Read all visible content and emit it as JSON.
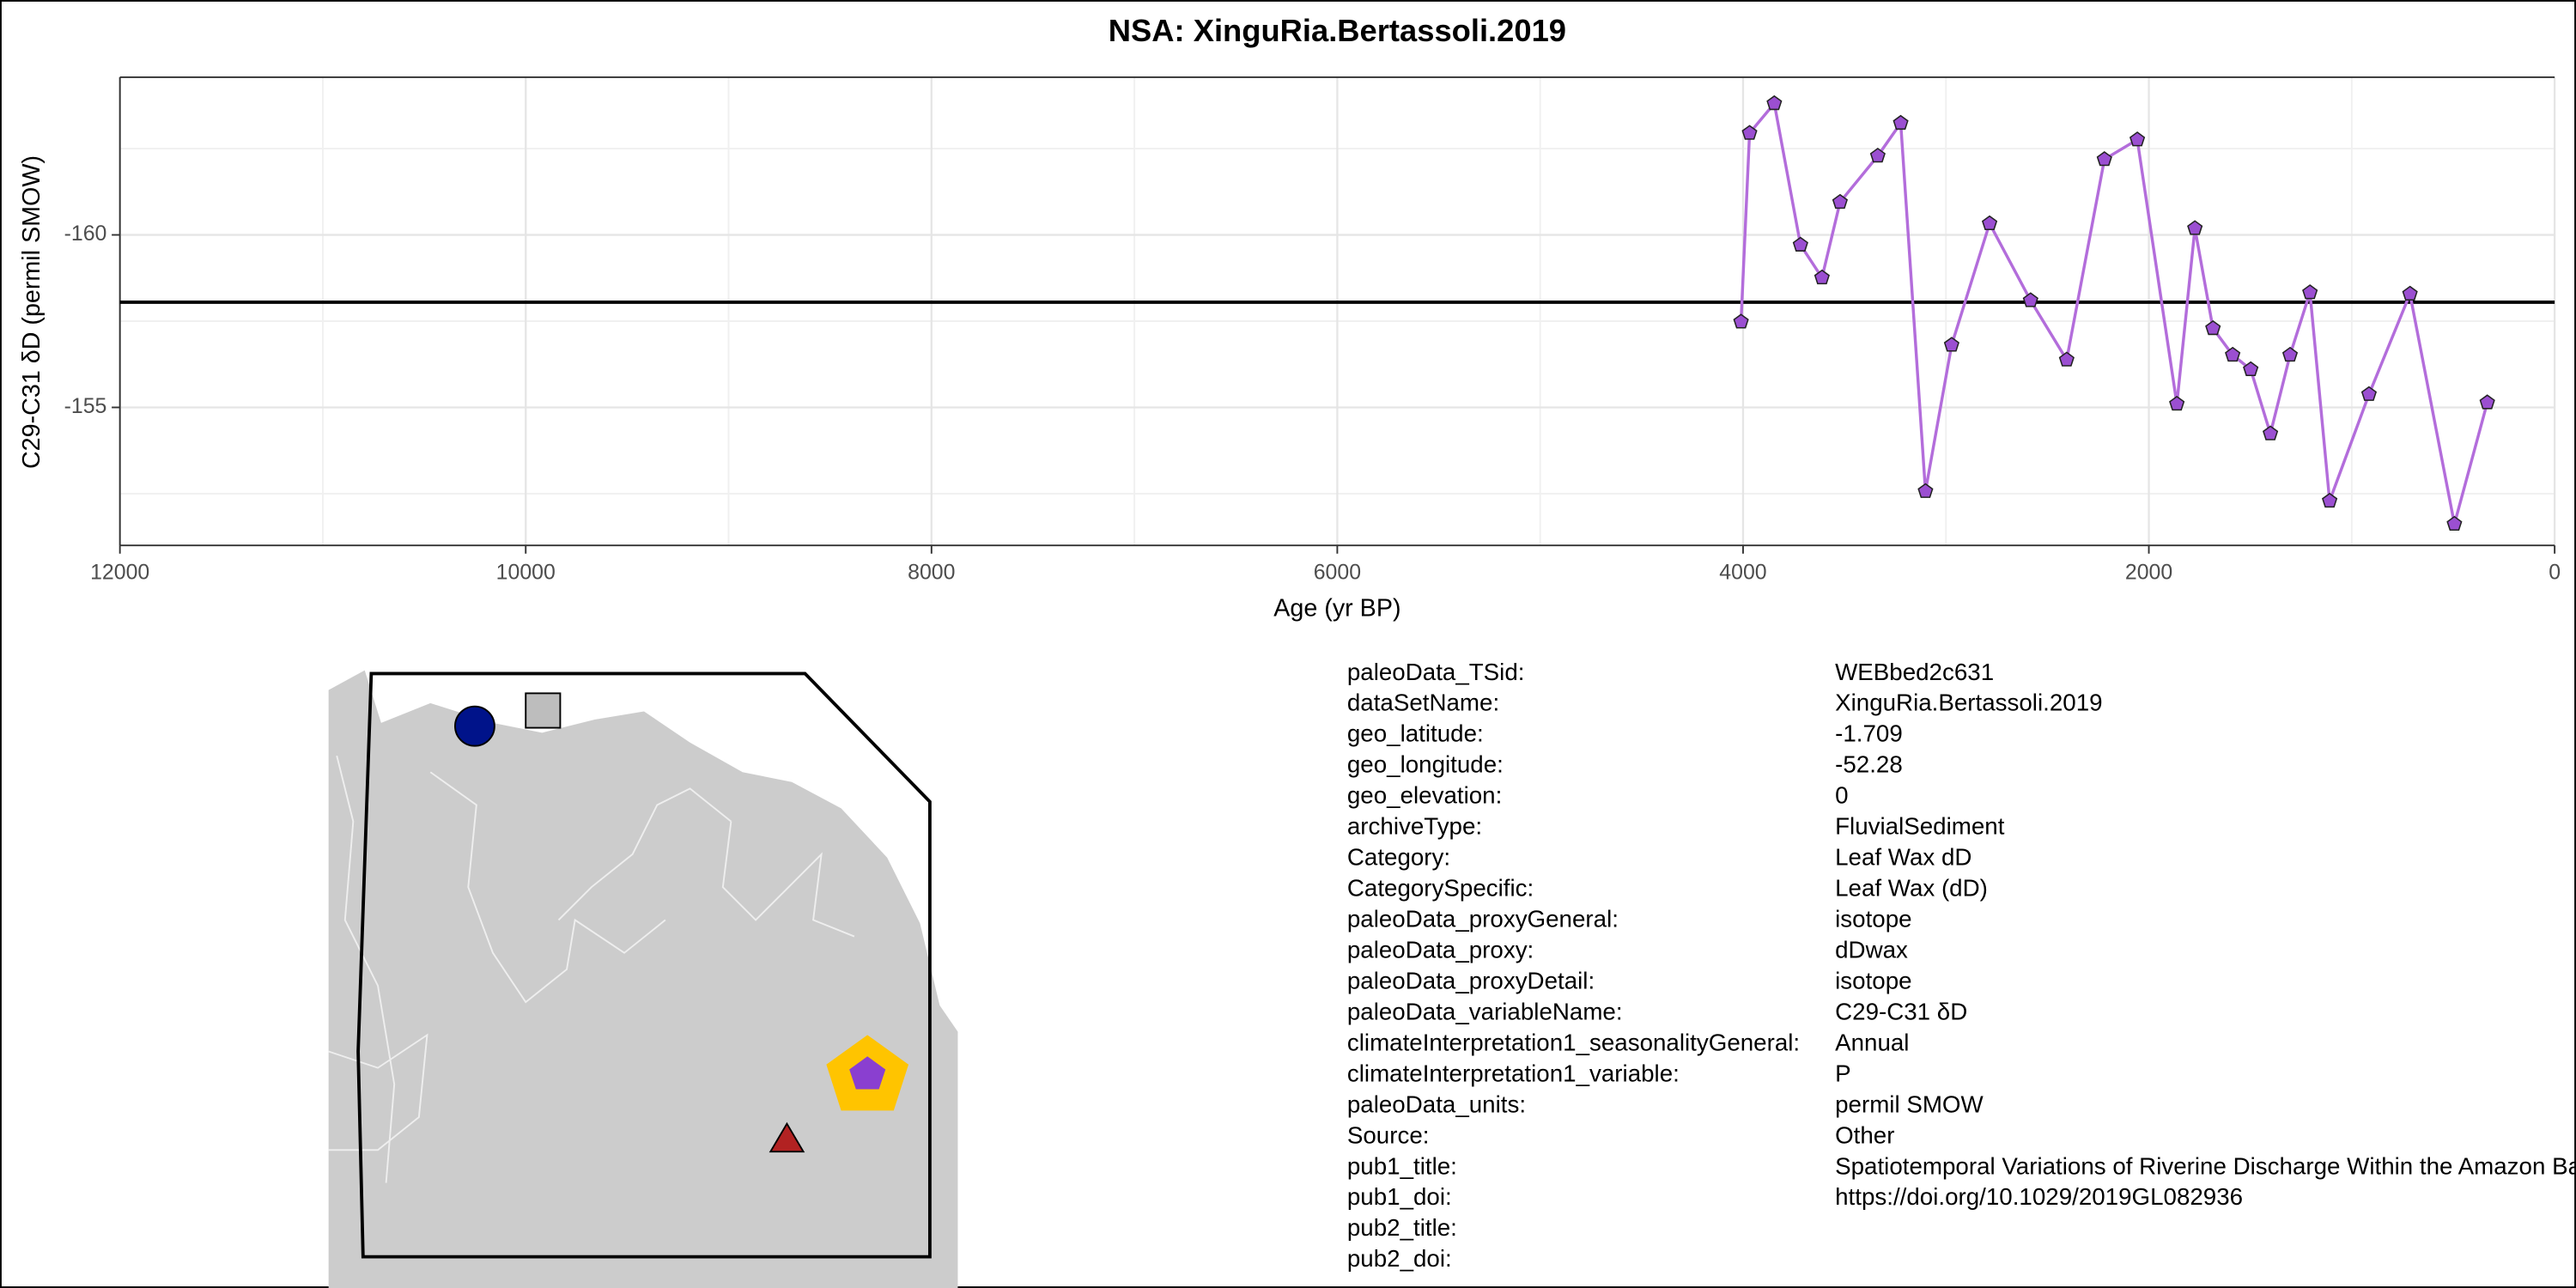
{
  "chart_data": {
    "type": "line",
    "title": "NSA: XinguRia.Bertassoli.2019",
    "x_label": "Age (yr BP)",
    "y_label": "C29-C31 δD (permil SMOW)",
    "xlim": [
      12000,
      0
    ],
    "ylim": [
      -164.57,
      -151.0
    ],
    "y_reversed": true,
    "xticks": [
      12000,
      10000,
      8000,
      6000,
      4000,
      2000,
      0
    ],
    "yticks": [
      -160,
      -155
    ],
    "grid": true,
    "hline": -158.05,
    "series": [
      {
        "color": "#b36ddb",
        "marker_color": "#9b4fd1",
        "x": [
          4010,
          3968,
          3846,
          3717,
          3611,
          3522,
          3336,
          3223,
          3101,
          2972,
          2785,
          2583,
          2405,
          2219,
          2057,
          1862,
          1773,
          1684,
          1587,
          1498,
          1401,
          1304,
          1206,
          1109,
          915,
          713,
          494,
          332
        ],
        "values": [
          -157.48,
          -162.95,
          -163.81,
          -159.71,
          -158.76,
          -160.95,
          -162.29,
          -163.24,
          -152.57,
          -156.81,
          -160.33,
          -158.1,
          -156.38,
          -162.19,
          -162.76,
          -155.1,
          -160.19,
          -157.29,
          -156.52,
          -156.1,
          -154.24,
          -156.52,
          -158.33,
          -152.29,
          -155.38,
          -158.29,
          -151.62,
          -155.14
        ]
      }
    ]
  },
  "metadata": {
    "rows": [
      [
        "paleoData_TSid:",
        "WEBbed2c631"
      ],
      [
        "dataSetName:",
        "XinguRia.Bertassoli.2019"
      ],
      [
        "geo_latitude:",
        "-1.709"
      ],
      [
        "geo_longitude:",
        "-52.28"
      ],
      [
        "geo_elevation:",
        "0"
      ],
      [
        "archiveType:",
        "FluvialSediment"
      ],
      [
        "Category:",
        "Leaf Wax dD"
      ],
      [
        "CategorySpecific:",
        "Leaf Wax (dD)"
      ],
      [
        "paleoData_proxyGeneral:",
        "isotope"
      ],
      [
        "paleoData_proxy:",
        "dDwax"
      ],
      [
        "paleoData_proxyDetail:",
        "isotope"
      ],
      [
        "paleoData_variableName:",
        "C29-C31 δD"
      ],
      [
        "climateInterpretation1_seasonalityGeneral:",
        "Annual"
      ],
      [
        "climateInterpretation1_variable:",
        "P"
      ],
      [
        "paleoData_units:",
        "permil SMOW"
      ],
      [
        "Source:",
        "Other"
      ],
      [
        "pub1_title:",
        "Spatiotemporal Variations of Riverine Discharge Within the Amazon Basin"
      ],
      [
        "pub1_doi:",
        "https://doi.org/10.1029/2019GL082936"
      ],
      [
        "pub2_title:"
      ],
      [
        "pub2_doi:"
      ]
    ]
  }
}
